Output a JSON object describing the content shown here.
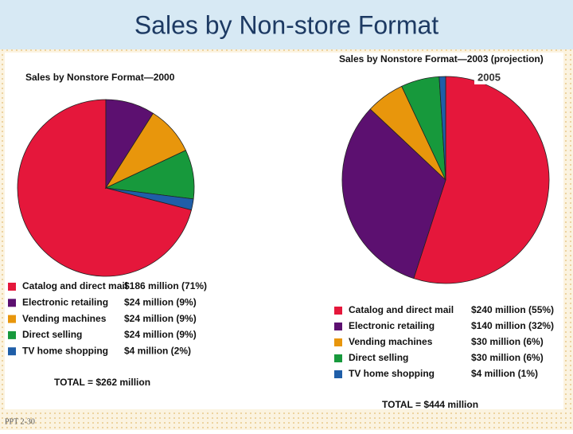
{
  "slide_title": "Sales by Non-store Format",
  "footer": "PPT 2-30",
  "chart_data": [
    {
      "type": "pie",
      "title": "Sales by Nonstore Format—2000",
      "categories": [
        "Catalog and direct mail",
        "Electronic retailing",
        "Vending machines",
        "Direct selling",
        "TV home shopping"
      ],
      "values": [
        71,
        9,
        9,
        9,
        2
      ],
      "value_labels": [
        "$186 million (71%)",
        "$24 million (9%)",
        "$24 million (9%)",
        "$24 million (9%)",
        "$4 million (2%)"
      ],
      "colors": [
        "#e5173b",
        "#5c1070",
        "#e8960c",
        "#17993c",
        "#1f5ea8"
      ],
      "total": "TOTAL = $262 million"
    },
    {
      "type": "pie",
      "title": "Sales by Nonstore Format—2003 (projection)",
      "annotation": "2005",
      "categories": [
        "Catalog and direct mail",
        "Electronic retailing",
        "Vending machines",
        "Direct selling",
        "TV home shopping"
      ],
      "values": [
        55,
        32,
        6,
        6,
        1
      ],
      "value_labels": [
        "$240 million (55%)",
        "$140 million (32%)",
        "$30 million (6%)",
        "$30 million (6%)",
        "$4 million (1%)"
      ],
      "colors": [
        "#e5173b",
        "#5c1070",
        "#e8960c",
        "#17993c",
        "#1f5ea8"
      ],
      "total": "TOTAL = $444 million"
    }
  ]
}
